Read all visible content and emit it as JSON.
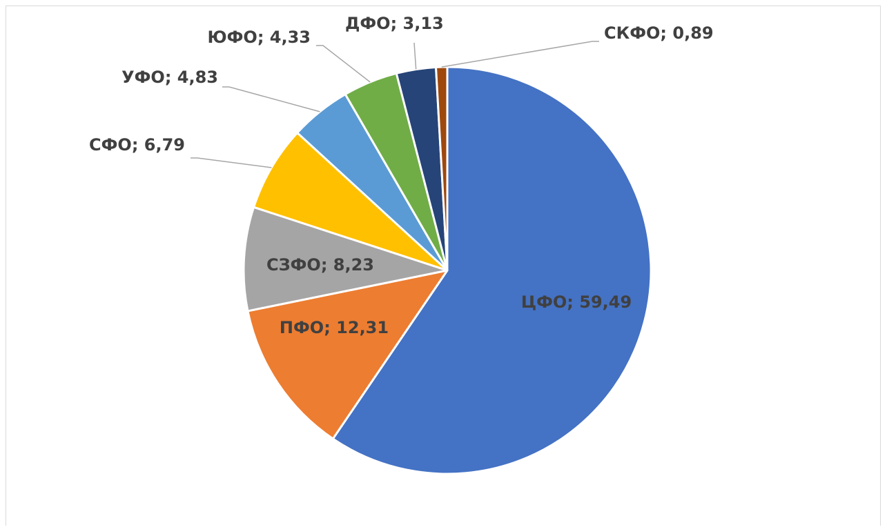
{
  "chart_data": {
    "type": "pie",
    "title": "",
    "slices": [
      {
        "name": "ЦФО",
        "value": 59.49,
        "label": "ЦФО; 59,49",
        "color": "#4472C4"
      },
      {
        "name": "ПФО",
        "value": 12.31,
        "label": "ПФО; 12,31",
        "color": "#ED7D31"
      },
      {
        "name": "СЗФО",
        "value": 8.23,
        "label": "СЗФО; 8,23",
        "color": "#A5A5A5"
      },
      {
        "name": "СФО",
        "value": 6.79,
        "label": "СФО; 6,79",
        "color": "#FFC000"
      },
      {
        "name": "УФО",
        "value": 4.83,
        "label": "УФО; 4,83",
        "color": "#5B9BD5"
      },
      {
        "name": "ЮФО",
        "value": 4.33,
        "label": "ЮФО; 4,33",
        "color": "#70AD47"
      },
      {
        "name": "ДФО",
        "value": 3.13,
        "label": "ДФО; 3,13",
        "color": "#264478"
      },
      {
        "name": "СКФО",
        "value": 0.89,
        "label": "СКФО; 0,89",
        "color": "#9E480E"
      }
    ],
    "start_angle_deg": 0,
    "direction": "clockwise",
    "legend": "none",
    "data_labels": "category; value"
  }
}
